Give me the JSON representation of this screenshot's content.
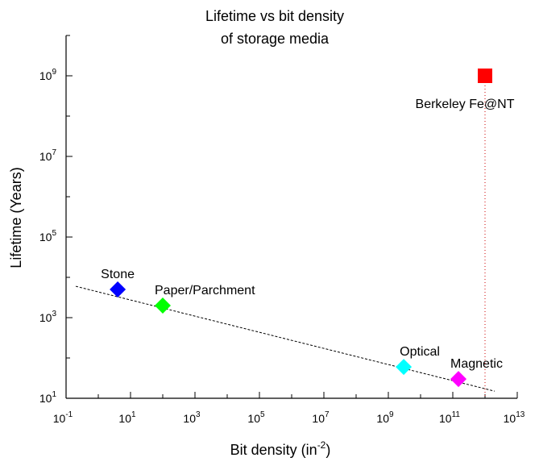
{
  "chart_data": {
    "type": "scatter",
    "title": [
      "Lifetime vs bit density",
      "of storage media"
    ],
    "xlabel": {
      "text": "Bit density (in",
      "exponent": "-2",
      "suffix": ")"
    },
    "ylabel": "Lifetime (Years)",
    "x_scale": "log",
    "y_scale": "log",
    "xlim": [
      0.1,
      10000000000000
    ],
    "ylim": [
      10,
      10000000000
    ],
    "x_ticks": [
      {
        "base": "10",
        "exp": "-1",
        "value": 0.1
      },
      {
        "base": "10",
        "exp": "1",
        "value": 10
      },
      {
        "base": "10",
        "exp": "3",
        "value": 1000
      },
      {
        "base": "10",
        "exp": "5",
        "value": 100000
      },
      {
        "base": "10",
        "exp": "7",
        "value": 10000000
      },
      {
        "base": "10",
        "exp": "9",
        "value": 1000000000
      },
      {
        "base": "10",
        "exp": "11",
        "value": 100000000000
      },
      {
        "base": "10",
        "exp": "13",
        "value": 10000000000000
      }
    ],
    "y_ticks": [
      {
        "base": "10",
        "exp": "1",
        "value": 10
      },
      {
        "base": "10",
        "exp": "3",
        "value": 1000
      },
      {
        "base": "10",
        "exp": "5",
        "value": 100000
      },
      {
        "base": "10",
        "exp": "7",
        "value": 10000000
      },
      {
        "base": "10",
        "exp": "9",
        "value": 1000000000
      }
    ],
    "points": [
      {
        "label": "Stone",
        "x": 4,
        "y": 5000,
        "color": "#0000ff",
        "marker": "diamond",
        "label_pos": "above"
      },
      {
        "label": "Paper/Parchment",
        "x": 100,
        "y": 2000,
        "color": "#00ff00",
        "marker": "diamond",
        "label_pos": "above-right"
      },
      {
        "label": "Optical",
        "x": 3000000000,
        "y": 60,
        "color": "#00ffff",
        "marker": "diamond",
        "label_pos": "above"
      },
      {
        "label": "Magnetic",
        "x": 150000000000,
        "y": 30,
        "color": "#ff00ff",
        "marker": "diamond",
        "label_pos": "above-right"
      },
      {
        "label": "Berkeley Fe@NT",
        "x": 1000000000000,
        "y": 1000000000,
        "color": "#ff0000",
        "marker": "square",
        "label_pos": "below"
      }
    ],
    "trend_line": {
      "x": [
        0.2,
        2000000000000
      ],
      "y": [
        6000,
        15
      ],
      "style": "dashed",
      "color": "#000000"
    },
    "reference_line": {
      "x": 1000000000000,
      "orientation": "vertical",
      "style": "dotted",
      "color": "#cc0000"
    },
    "legend": "none",
    "grid": false
  }
}
